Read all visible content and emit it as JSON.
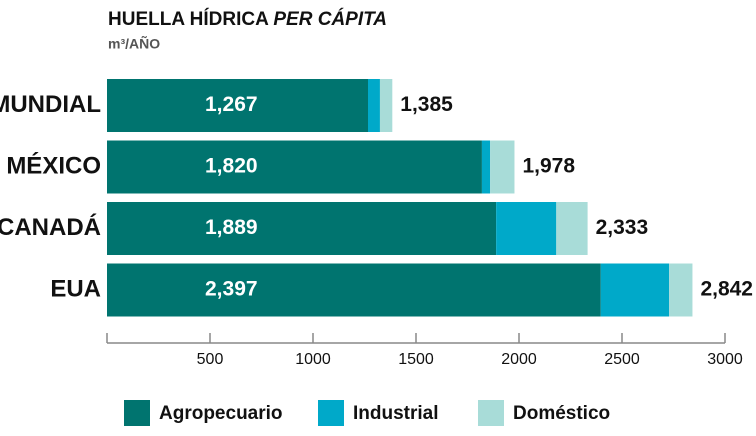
{
  "chart_data": {
    "type": "stacked-hbar",
    "title": [
      "HUELLA HÍDRICA",
      "PER CÁPITA"
    ],
    "subtitle": "m³/AÑO",
    "categories": [
      "MUNDIAL",
      "MÉXICO",
      "CANADÁ",
      "EUA"
    ],
    "series": [
      {
        "name": "Agropecuario",
        "color": "#00746f",
        "values": [
          1267,
          1820,
          1889,
          2397
        ],
        "value_labels": [
          "1,267",
          "1,820",
          "1,889",
          "2,397"
        ]
      },
      {
        "name": "Industrial",
        "color": "#00a9c9",
        "values": [
          58,
          40,
          292,
          332
        ]
      },
      {
        "name": "Doméstico",
        "color": "#a8dcd8",
        "values": [
          60,
          118,
          152,
          113
        ]
      }
    ],
    "totals": [
      1385,
      1978,
      2333,
      2842
    ],
    "total_labels": [
      "1,385",
      "1,978",
      "2,333",
      "2,842"
    ],
    "xlim": [
      0,
      3000
    ],
    "xticks": [
      500,
      1000,
      1500,
      2000,
      2500,
      3000
    ]
  }
}
